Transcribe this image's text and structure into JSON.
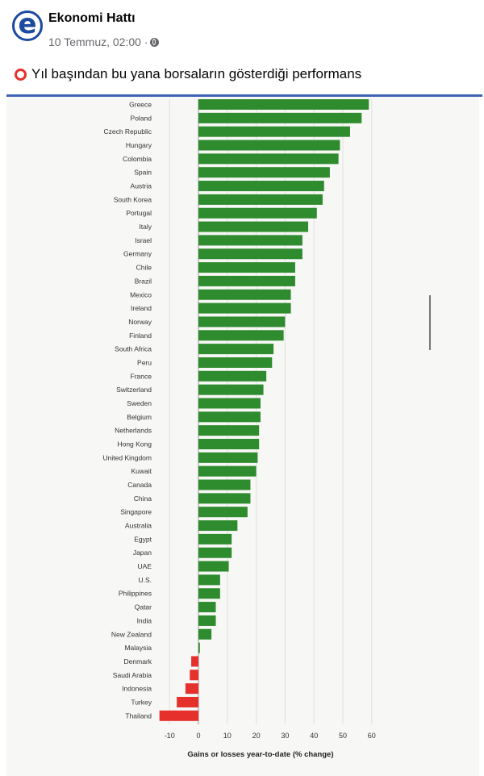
{
  "post": {
    "page_name": "Ekonomi Hattı",
    "date": "10 Temmuz, 02:00 ·",
    "caption": "Yıl başından bu yana borsaların gösterdiği performans",
    "avatar_letter": "e",
    "icons": {
      "avatar": "ekonomi-hatti-logo",
      "privacy": "globe-icon",
      "caption": "red-circle-icon"
    }
  },
  "chart_data": {
    "type": "bar",
    "orientation": "horizontal",
    "xlabel": "Gains or losses year-to-date (% change)",
    "ylabel": "",
    "xlim": [
      -14,
      62
    ],
    "xticks": [
      -10,
      0,
      10,
      20,
      30,
      40,
      50,
      60
    ],
    "grid": true,
    "positive_color": "#2e8b2e",
    "negative_color": "#e5302b",
    "categories": [
      "Greece",
      "Poland",
      "Czech Republic",
      "Hungary",
      "Colombia",
      "Spain",
      "Austria",
      "South Korea",
      "Portugal",
      "Italy",
      "Israel",
      "Germany",
      "Chile",
      "Brazil",
      "Mexico",
      "Ireland",
      "Norway",
      "Finland",
      "South Africa",
      "Peru",
      "France",
      "Switzerland",
      "Sweden",
      "Belgium",
      "Netherlands",
      "Hong Kong",
      "United Kingdom",
      "Kuwait",
      "Canada",
      "China",
      "Singapore",
      "Australia",
      "Egypt",
      "Japan",
      "UAE",
      "U.S.",
      "Philippines",
      "Qatar",
      "India",
      "New Zealand",
      "Malaysia",
      "Denmark",
      "Saudi Arabia",
      "Indonesia",
      "Turkey",
      "Thailand"
    ],
    "values": [
      59.0,
      56.5,
      52.5,
      49.0,
      48.5,
      45.5,
      43.5,
      43.0,
      41.0,
      38.0,
      36.0,
      36.0,
      33.5,
      33.5,
      32.0,
      32.0,
      30.0,
      29.5,
      26.0,
      25.5,
      23.5,
      22.5,
      21.5,
      21.5,
      21.0,
      21.0,
      20.5,
      20.0,
      18.0,
      18.0,
      17.0,
      13.5,
      11.5,
      11.5,
      10.5,
      7.5,
      7.5,
      6.0,
      6.0,
      4.5,
      0.5,
      -2.5,
      -3.0,
      -4.5,
      -7.5,
      -13.5
    ]
  }
}
